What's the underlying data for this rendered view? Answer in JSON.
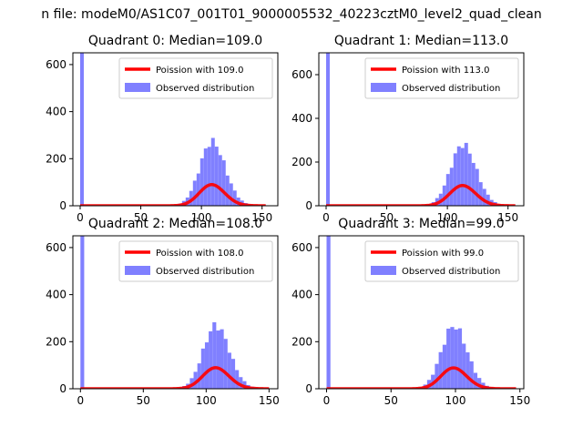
{
  "figure": {
    "suptitle": "n file: modeM0/AS1C07_001T01_9000005532_40223cztM0_level2_quad_clean"
  },
  "colors": {
    "poisson": "#ff0000",
    "observed": "#8080ff",
    "background": "#ffffff",
    "axis": "#000000"
  },
  "chart_data": [
    {
      "type": "bar",
      "title": "Quadrant 0: Median=109.0",
      "legend_position": "top-right",
      "legend": [
        "Poission with 109.0",
        "Observed distribution"
      ],
      "xlim": [
        -6,
        163
      ],
      "ylim": [
        0,
        650
      ],
      "xticks": [
        0,
        50,
        100,
        150
      ],
      "yticks": [
        0,
        200,
        400,
        600
      ],
      "bin_width": 3,
      "zero_bin_count": 650,
      "bin_start": 0,
      "bin_end": 153,
      "poisson_lambda": 109.0,
      "poisson_scale": 2400,
      "tail_level": 10,
      "ripple": 0.07
    },
    {
      "type": "bar",
      "title": "Quadrant 1: Median=113.0",
      "legend_position": "top-right",
      "legend": [
        "Poission with 113.0",
        "Observed distribution"
      ],
      "xlim": [
        -6,
        163
      ],
      "ylim": [
        0,
        700
      ],
      "xticks": [
        0,
        50,
        100,
        150
      ],
      "yticks": [
        0,
        200,
        400,
        600
      ],
      "bin_width": 3,
      "zero_bin_count": 700,
      "bin_start": 0,
      "bin_end": 156,
      "poisson_lambda": 113.0,
      "poisson_scale": 2520,
      "tail_level": 8,
      "ripple": 0.07
    },
    {
      "type": "bar",
      "title": "Quadrant 2: Median=108.0",
      "legend_position": "top-right",
      "legend": [
        "Poission with 108.0",
        "Observed distribution"
      ],
      "xlim": [
        -6,
        157
      ],
      "ylim": [
        0,
        650
      ],
      "xticks": [
        0,
        50,
        100,
        150
      ],
      "yticks": [
        0,
        200,
        400,
        600
      ],
      "bin_width": 3,
      "zero_bin_count": 650,
      "bin_start": 0,
      "bin_end": 150,
      "poisson_lambda": 108.0,
      "poisson_scale": 2380,
      "tail_level": 6,
      "ripple": 0.07
    },
    {
      "type": "bar",
      "title": "Quadrant 3: Median=99.0",
      "legend_position": "top-right",
      "legend": [
        "Poission with 99.0",
        "Observed distribution"
      ],
      "xlim": [
        -6,
        153
      ],
      "ylim": [
        0,
        650
      ],
      "xticks": [
        0,
        50,
        100,
        150
      ],
      "yticks": [
        0,
        200,
        400,
        600
      ],
      "bin_width": 3,
      "zero_bin_count": 650,
      "bin_start": 0,
      "bin_end": 147,
      "poisson_lambda": 99.0,
      "poisson_scale": 2260,
      "tail_level": 6,
      "ripple": 0.07
    }
  ]
}
